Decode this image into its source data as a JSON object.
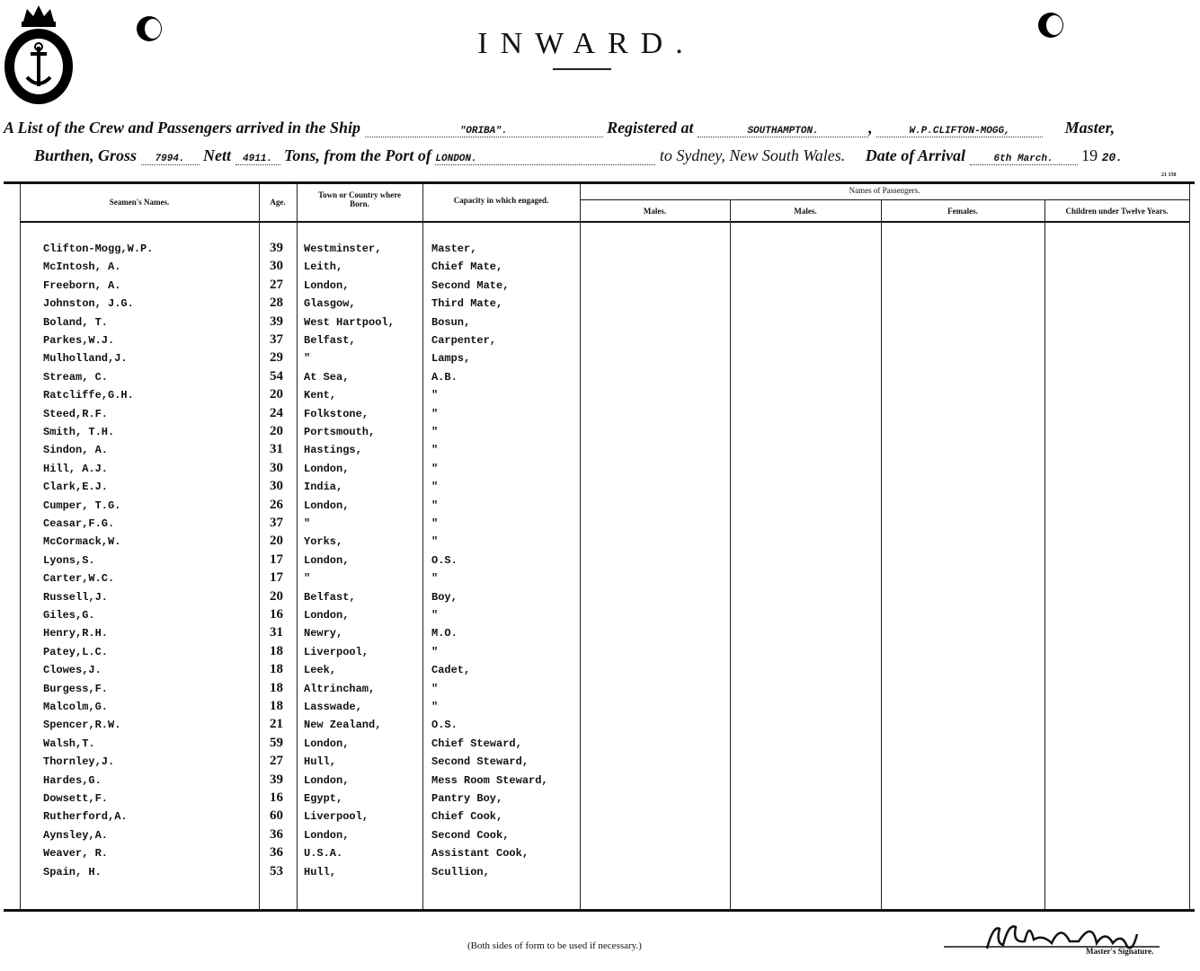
{
  "header": {
    "title": "INWARD.",
    "line1": {
      "prefix": "A List of the Crew and Passengers arrived in the Ship",
      "ship": "\"ORIBA\".",
      "registered_label": "Registered at",
      "registered_port": "SOUTHAMPTON.",
      "master_name": "W.P.CLIFTON-MOGG,",
      "master_label": "Master,"
    },
    "line2": {
      "burthen_label": "Burthen, Gross",
      "gross": "7994.",
      "nett_label": "Nett",
      "nett": "4911.",
      "tons_label": "Tons, from the Port of",
      "port": "LONDON.",
      "to_label": "to Sydney, New South Wales.",
      "arrival_label": "Date of Arrival",
      "arrival_date": "6th March.",
      "year_prefix": "19",
      "year_suffix": "20."
    },
    "form_code": "21 150"
  },
  "table": {
    "columns": {
      "name": "Seamen's Names.",
      "age": "Age.",
      "born": "Town or Country where Born.",
      "capacity": "Capacity in which engaged.",
      "passengers": "Names of Passengers.",
      "males1": "Males.",
      "males2": "Males.",
      "females": "Females.",
      "children": "Children under Twelve Years."
    },
    "rows": [
      [
        "Clifton-Mogg,W.P.",
        "39",
        "Westminster,",
        "Master,"
      ],
      [
        "McIntosh, A.",
        "30",
        "Leith,",
        "Chief Mate,"
      ],
      [
        "Freeborn, A.",
        "27",
        "London,",
        "Second Mate,"
      ],
      [
        "Johnston, J.G.",
        "28",
        "Glasgow,",
        "Third Mate,"
      ],
      [
        "Boland, T.",
        "39",
        "West Hartpool,",
        "Bosun,"
      ],
      [
        "Parkes,W.J.",
        "37",
        "Belfast,",
        "Carpenter,"
      ],
      [
        "Mulholland,J.",
        "29",
        "\"",
        "Lamps,"
      ],
      [
        "Stream, C.",
        "54",
        "At Sea,",
        "A.B."
      ],
      [
        "Ratcliffe,G.H.",
        "20",
        "Kent,",
        "\""
      ],
      [
        "Steed,R.F.",
        "24",
        "Folkstone,",
        "\""
      ],
      [
        "Smith, T.H.",
        "20",
        "Portsmouth,",
        "\""
      ],
      [
        "Sindon, A.",
        "31",
        "Hastings,",
        "\""
      ],
      [
        "Hill, A.J.",
        "30",
        "London,",
        "\""
      ],
      [
        "Clark,E.J.",
        "30",
        "India,",
        "\""
      ],
      [
        "Cumper, T.G.",
        "26",
        "London,",
        "\""
      ],
      [
        "Ceasar,F.G.",
        "37",
        "\"",
        "\""
      ],
      [
        "McCormack,W.",
        "20",
        "Yorks,",
        "\""
      ],
      [
        "Lyons,S.",
        "17",
        "London,",
        "O.S."
      ],
      [
        "Carter,W.C.",
        "17",
        "\"",
        "\""
      ],
      [
        "Russell,J.",
        "20",
        "Belfast,",
        "Boy,"
      ],
      [
        "Giles,G.",
        "16",
        "London,",
        "\""
      ],
      [
        "Henry,R.H.",
        "31",
        "Newry,",
        "M.O."
      ],
      [
        "Patey,L.C.",
        "18",
        "Liverpool,",
        "\""
      ],
      [
        "Clowes,J.",
        "18",
        "Leek,",
        "Cadet,"
      ],
      [
        "Burgess,F.",
        "18",
        "Altrincham,",
        "\""
      ],
      [
        "Malcolm,G.",
        "18",
        "Lasswade,",
        "\""
      ],
      [
        "Spencer,R.W.",
        "21",
        "New Zealand,",
        "O.S."
      ],
      [
        "Walsh,T.",
        "59",
        "London,",
        "Chief Steward,"
      ],
      [
        "Thornley,J.",
        "27",
        "Hull,",
        "Second Steward,"
      ],
      [
        "Hardes,G.",
        "39",
        "London,",
        "Mess Room Steward,"
      ],
      [
        "Dowsett,F.",
        "16",
        "Egypt,",
        "Pantry Boy,"
      ],
      [
        "Rutherford,A.",
        "60",
        "Liverpool,",
        "Chief Cook,"
      ],
      [
        "Aynsley,A.",
        "36",
        "London,",
        "Second Cook,"
      ],
      [
        "Weaver, R.",
        "36",
        "U.S.A.",
        "Assistant Cook,"
      ],
      [
        "Spain, H.",
        "53",
        "Hull,",
        "Scullion,"
      ]
    ]
  },
  "footer": {
    "note": "(Both sides of form to be used if necessary.)",
    "signature_label": "Master's Signature.",
    "signature": "W Clifton Mogg"
  }
}
